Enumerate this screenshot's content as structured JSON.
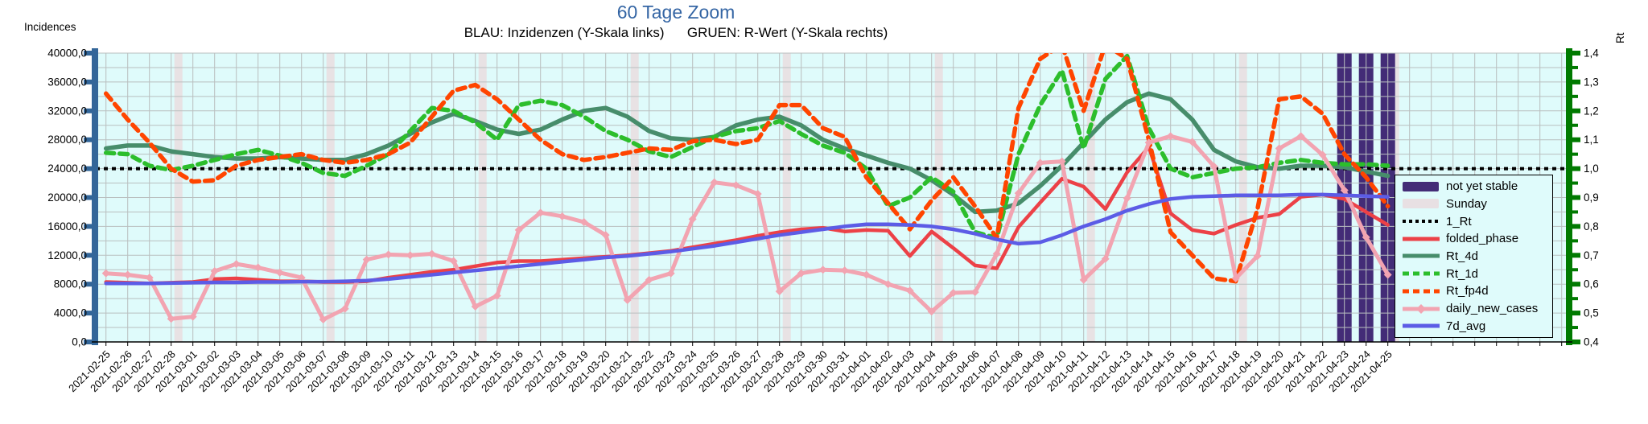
{
  "title": "60 Tage Zoom",
  "subtitle": "BLAU: Inzidenzen (Y-Skala links)      GRUEN: R-Wert (Y-Skala rechts)",
  "colors": {
    "title": "#3465A4",
    "plot_bg": "#DFFBFB",
    "grid": "#B9BFBF",
    "left_axis": "#336699",
    "right_axis": "#007A00",
    "sunday": "#E8E0E3",
    "not_yet_stable": "#432C77",
    "reference": "#000000"
  },
  "left_axis": {
    "title": "Incidences",
    "min": 0,
    "max": 40000,
    "major": 4000,
    "minor": 2000,
    "labels": [
      "40000,0",
      "36000,0",
      "32000,0",
      "28000,0",
      "24000,0",
      "20000,0",
      "16000,0",
      "12000,0",
      "8000,0",
      "4000,0",
      "0,0"
    ]
  },
  "right_axis": {
    "title": "Rt",
    "min": 0.4,
    "max": 1.4,
    "major": 0.1,
    "minor": 0.05,
    "labels": [
      "1,4",
      "1,3",
      "1,2",
      "1,1",
      "1,0",
      "0,9",
      "0,8",
      "0,7",
      "0,6",
      "0,5",
      "0,4"
    ]
  },
  "chart_data": {
    "type": "line",
    "x_dates": [
      "2021-02-25",
      "2021-02-26",
      "2021-02-27",
      "2021-02-28",
      "2021-03-01",
      "2021-03-02",
      "2021-03-03",
      "2021-03-04",
      "2021-03-05",
      "2021-03-06",
      "2021-03-07",
      "2021-03-08",
      "2021-03-09",
      "2021-03-10",
      "2021-03-11",
      "2021-03-12",
      "2021-03-13",
      "2021-03-14",
      "2021-03-15",
      "2021-03-16",
      "2021-03-17",
      "2021-03-18",
      "2021-03-19",
      "2021-03-20",
      "2021-03-21",
      "2021-03-22",
      "2021-03-23",
      "2021-03-24",
      "2021-03-25",
      "2021-03-26",
      "2021-03-27",
      "2021-03-28",
      "2021-03-29",
      "2021-03-30",
      "2021-03-31",
      "2021-04-01",
      "2021-04-02",
      "2021-04-03",
      "2021-04-04",
      "2021-04-05",
      "2021-04-06",
      "2021-04-07",
      "2021-04-08",
      "2021-04-09",
      "2021-04-10",
      "2021-04-11",
      "2021-04-12",
      "2021-04-13",
      "2021-04-14",
      "2021-04-15",
      "2021-04-16",
      "2021-04-17",
      "2021-04-18",
      "2021-04-19",
      "2021-04-20",
      "2021-04-21",
      "2021-04-22",
      "2021-04-23",
      "2021-04-24",
      "2021-04-25"
    ],
    "sundays": [
      "2021-02-28",
      "2021-03-07",
      "2021-03-14",
      "2021-03-21",
      "2021-03-28",
      "2021-04-04",
      "2021-04-11",
      "2021-04-18",
      "2021-04-25"
    ],
    "not_yet_stable_dates": [
      "2021-04-23",
      "2021-04-24",
      "2021-04-25"
    ],
    "reference_line": {
      "name": "1_Rt",
      "axis": "right",
      "value": 1.0
    },
    "series": [
      {
        "name": "folded_phase",
        "axis": "left",
        "color": "#EC4147",
        "style": "solid",
        "values": [
          8300,
          8200,
          8100,
          8200,
          8300,
          8700,
          8800,
          8600,
          8400,
          8400,
          8300,
          8300,
          8400,
          8900,
          9300,
          9700,
          10000,
          10500,
          11000,
          11200,
          11200,
          11400,
          11600,
          11800,
          12000,
          12300,
          12600,
          13100,
          13600,
          14100,
          14700,
          15200,
          15600,
          15800,
          15300,
          15500,
          15400,
          11900,
          15300,
          13000,
          10600,
          10200,
          15900,
          19300,
          22600,
          21500,
          18400,
          23500,
          27000,
          17800,
          15500,
          15000,
          16200,
          17200,
          17700,
          20100,
          20400,
          19800,
          18000,
          16200
        ]
      },
      {
        "name": "Rt_4d",
        "axis": "right",
        "color": "#478D6B",
        "style": "solid",
        "values": [
          1.07,
          1.08,
          1.08,
          1.06,
          1.05,
          1.04,
          1.035,
          1.035,
          1.04,
          1.035,
          1.03,
          1.03,
          1.05,
          1.08,
          1.12,
          1.16,
          1.19,
          1.165,
          1.135,
          1.12,
          1.135,
          1.17,
          1.2,
          1.21,
          1.18,
          1.13,
          1.105,
          1.1,
          1.11,
          1.15,
          1.17,
          1.18,
          1.15,
          1.1,
          1.07,
          1.045,
          1.02,
          1.0,
          0.96,
          0.91,
          0.85,
          0.855,
          0.88,
          0.94,
          1.01,
          1.09,
          1.17,
          1.23,
          1.26,
          1.24,
          1.17,
          1.065,
          1.025,
          1.005,
          1.0,
          1.01,
          1.01,
          1.005,
          0.99,
          0.975
        ]
      },
      {
        "name": "Rt_1d",
        "axis": "right",
        "color": "#2CBE2C",
        "style": "dashed",
        "values": [
          1.055,
          1.05,
          1.01,
          0.995,
          1.01,
          1.03,
          1.05,
          1.065,
          1.045,
          1.02,
          0.985,
          0.975,
          1.01,
          1.05,
          1.13,
          1.21,
          1.2,
          1.16,
          1.1,
          1.22,
          1.235,
          1.22,
          1.18,
          1.13,
          1.1,
          1.06,
          1.04,
          1.075,
          1.11,
          1.13,
          1.14,
          1.165,
          1.12,
          1.08,
          1.055,
          1.0,
          0.87,
          0.9,
          0.97,
          0.92,
          0.78,
          0.76,
          1.05,
          1.22,
          1.34,
          1.07,
          1.31,
          1.39,
          1.14,
          1.0,
          0.97,
          0.985,
          1.0,
          1.005,
          1.02,
          1.03,
          1.02,
          1.015,
          1.015,
          1.01
        ]
      },
      {
        "name": "Rt_fp4d",
        "axis": "right",
        "color": "#FF4500",
        "style": "dashed",
        "values": [
          1.26,
          1.17,
          1.09,
          1.0,
          0.955,
          0.96,
          1.01,
          1.03,
          1.04,
          1.05,
          1.03,
          1.02,
          1.03,
          1.05,
          1.09,
          1.18,
          1.27,
          1.29,
          1.24,
          1.17,
          1.1,
          1.05,
          1.03,
          1.04,
          1.055,
          1.07,
          1.065,
          1.095,
          1.1,
          1.085,
          1.1,
          1.22,
          1.22,
          1.14,
          1.11,
          0.97,
          0.88,
          0.79,
          0.89,
          0.97,
          0.87,
          0.76,
          1.21,
          1.38,
          1.43,
          1.2,
          1.43,
          1.38,
          1.1,
          0.78,
          0.7,
          0.62,
          0.61,
          0.86,
          1.24,
          1.25,
          1.19,
          1.05,
          0.97,
          0.87
        ]
      },
      {
        "name": "daily_new_cases",
        "axis": "left",
        "color": "#F2A4B1",
        "style": "solid",
        "marker": "diamond",
        "values": [
          9500,
          9300,
          8900,
          3200,
          3500,
          9800,
          10800,
          10300,
          9600,
          8900,
          3100,
          4600,
          11400,
          12100,
          12000,
          12200,
          11200,
          4900,
          6400,
          15500,
          17900,
          17400,
          16600,
          14800,
          5800,
          8600,
          9500,
          17000,
          22100,
          21700,
          20500,
          7000,
          9500,
          10000,
          9900,
          9300,
          8000,
          7100,
          4200,
          6800,
          6900,
          12200,
          20600,
          24800,
          25000,
          8600,
          11500,
          19900,
          27600,
          28500,
          27700,
          24300,
          8800,
          11900,
          26800,
          28500,
          25900,
          21000,
          14500,
          9300
        ]
      },
      {
        "name": "7d_avg",
        "axis": "left",
        "color": "#5C5CE6",
        "style": "solid",
        "values": [
          8100,
          8100,
          8100,
          8150,
          8200,
          8250,
          8250,
          8300,
          8300,
          8350,
          8350,
          8400,
          8500,
          8700,
          9000,
          9300,
          9600,
          9900,
          10200,
          10500,
          10800,
          11100,
          11400,
          11700,
          11900,
          12200,
          12500,
          12900,
          13300,
          13800,
          14300,
          14800,
          15200,
          15600,
          16000,
          16300,
          16300,
          16200,
          16000,
          15600,
          15000,
          14200,
          13600,
          13800,
          14800,
          16000,
          17000,
          18200,
          19100,
          19800,
          20100,
          20200,
          20300,
          20300,
          20300,
          20400,
          20400,
          20300,
          20200,
          20100
        ]
      }
    ],
    "legend": [
      {
        "label": "not yet stable",
        "type": "band",
        "color": "#432C77"
      },
      {
        "label": "Sunday",
        "type": "band",
        "color": "#E8E0E3"
      },
      {
        "label": "1_Rt",
        "type": "dotted",
        "color": "#000000"
      },
      {
        "label": "folded_phase",
        "type": "solid",
        "color": "#EC4147"
      },
      {
        "label": "Rt_4d",
        "type": "solid",
        "color": "#478D6B"
      },
      {
        "label": "Rt_1d",
        "type": "dashed",
        "color": "#2CBE2C"
      },
      {
        "label": "Rt_fp4d",
        "type": "dashed",
        "color": "#FF4500"
      },
      {
        "label": "daily_new_cases",
        "type": "solid-marker",
        "color": "#F2A4B1"
      },
      {
        "label": "7d_avg",
        "type": "solid",
        "color": "#5C5CE6"
      }
    ]
  }
}
